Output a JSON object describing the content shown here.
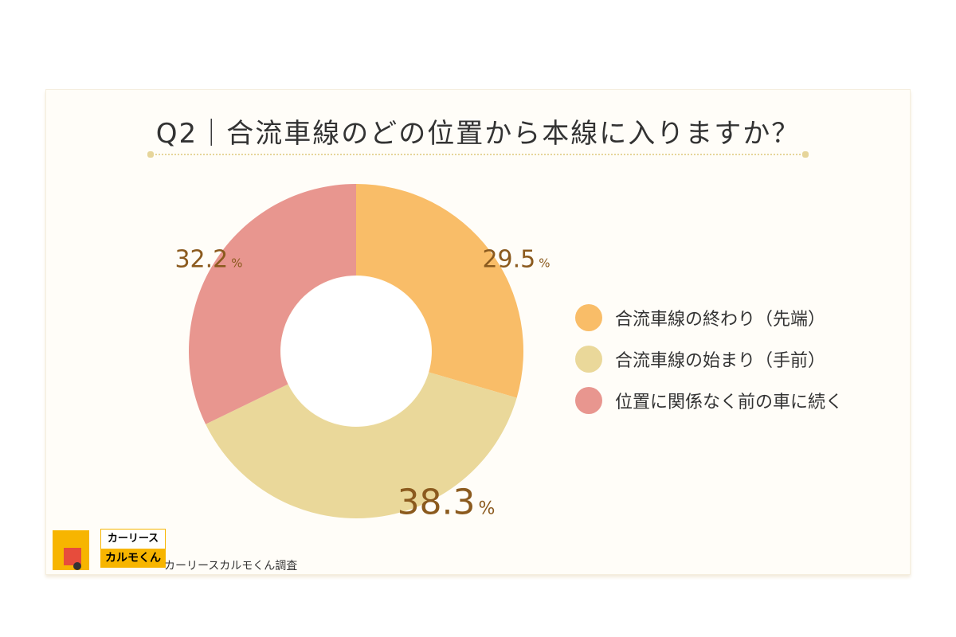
{
  "chart_data": {
    "type": "pie",
    "donut": true,
    "title": "Q2｜合流車線のどの位置から本線に入りますか？",
    "unit": "%",
    "categories": [
      "合流車線の終わり（先端）",
      "合流車線の始まり（手前）",
      "位置に関係なく前の車に続く"
    ],
    "values": [
      29.5,
      38.3,
      32.2
    ],
    "labels": [
      "29.5",
      "38.3",
      "32.2"
    ],
    "colors": [
      "#f9bd68",
      "#ead89a",
      "#e8968f"
    ],
    "label_color": "#8b5a1e",
    "legend_placement": "right"
  },
  "footer": {
    "source": "カーリースカルモくん調査",
    "logo_text": [
      "カーリース",
      "カルモくん"
    ]
  }
}
